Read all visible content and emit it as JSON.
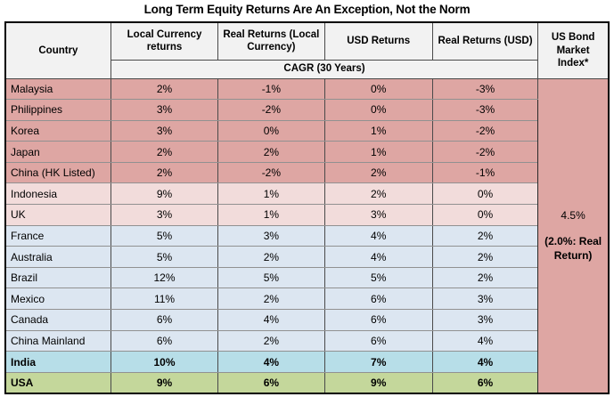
{
  "title": "Long Term Equity Returns Are An Exception, Not the Norm",
  "table": {
    "headers": [
      "Country",
      "Local Currency returns",
      "Real Returns (Local Currency)",
      "USD Returns",
      "Real Returns (USD)",
      "US Bond Market Index*"
    ],
    "subheader": "CAGR (30 Years)",
    "rows": [
      {
        "country": "Malaysia",
        "local": "2%",
        "real_local": "-1%",
        "usd": "0%",
        "real_usd": "-3%",
        "group": "pink-dark",
        "bold": false
      },
      {
        "country": "Philippines",
        "local": "3%",
        "real_local": "-2%",
        "usd": "0%",
        "real_usd": "-3%",
        "group": "pink-dark",
        "bold": false
      },
      {
        "country": "Korea",
        "local": "3%",
        "real_local": "0%",
        "usd": "1%",
        "real_usd": "-2%",
        "group": "pink-dark",
        "bold": false
      },
      {
        "country": "Japan",
        "local": "2%",
        "real_local": "2%",
        "usd": "1%",
        "real_usd": "-2%",
        "group": "pink-dark",
        "bold": false
      },
      {
        "country": "China (HK Listed)",
        "local": "2%",
        "real_local": "-2%",
        "usd": "2%",
        "real_usd": "-1%",
        "group": "pink-dark",
        "bold": false
      },
      {
        "country": "Indonesia",
        "local": "9%",
        "real_local": "1%",
        "usd": "2%",
        "real_usd": "0%",
        "group": "pink-light",
        "bold": false
      },
      {
        "country": "UK",
        "local": "3%",
        "real_local": "1%",
        "usd": "3%",
        "real_usd": "0%",
        "group": "pink-light",
        "bold": false
      },
      {
        "country": "France",
        "local": "5%",
        "real_local": "3%",
        "usd": "4%",
        "real_usd": "2%",
        "group": "blue",
        "bold": false
      },
      {
        "country": "Australia",
        "local": "5%",
        "real_local": "2%",
        "usd": "4%",
        "real_usd": "2%",
        "group": "blue",
        "bold": false
      },
      {
        "country": "Brazil",
        "local": "12%",
        "real_local": "5%",
        "usd": "5%",
        "real_usd": "2%",
        "group": "blue",
        "bold": false
      },
      {
        "country": "Mexico",
        "local": "11%",
        "real_local": "2%",
        "usd": "6%",
        "real_usd": "3%",
        "group": "blue",
        "bold": false
      },
      {
        "country": "Canada",
        "local": "6%",
        "real_local": "4%",
        "usd": "6%",
        "real_usd": "3%",
        "group": "blue",
        "bold": false
      },
      {
        "country": "China Mainland",
        "local": "6%",
        "real_local": "2%",
        "usd": "6%",
        "real_usd": "4%",
        "group": "blue",
        "bold": false
      },
      {
        "country": "India",
        "local": "10%",
        "real_local": "4%",
        "usd": "7%",
        "real_usd": "4%",
        "group": "cyan",
        "bold": true
      },
      {
        "country": "USA",
        "local": "9%",
        "real_local": "6%",
        "usd": "9%",
        "real_usd": "6%",
        "group": "green",
        "bold": true
      }
    ],
    "bond": {
      "value": "4.5%",
      "real_return": "(2.0%: Real Return)"
    }
  },
  "colors": {
    "row_dark_pink": "#DEA6A3",
    "row_light_pink": "#F2DCDB",
    "row_light_blue": "#DCE6F1",
    "row_india_cyan": "#B7DEE8",
    "row_usa_green": "#C4D79B",
    "header_gray": "#F2F2F2",
    "border_outer": "#000000"
  },
  "chart_data": {
    "type": "table",
    "title": "Long Term Equity Returns Are An Exception, Not the Norm",
    "columns": [
      "Country",
      "Local Currency returns",
      "Real Returns (Local Currency)",
      "USD Returns",
      "Real Returns (USD)",
      "US Bond Market Index*"
    ],
    "subheader": "CAGR (30 Years)",
    "rows": [
      [
        "Malaysia",
        "2%",
        "-1%",
        "0%",
        "-3%"
      ],
      [
        "Philippines",
        "3%",
        "-2%",
        "0%",
        "-3%"
      ],
      [
        "Korea",
        "3%",
        "0%",
        "1%",
        "-2%"
      ],
      [
        "Japan",
        "2%",
        "2%",
        "1%",
        "-2%"
      ],
      [
        "China (HK Listed)",
        "2%",
        "-2%",
        "2%",
        "-1%"
      ],
      [
        "Indonesia",
        "9%",
        "1%",
        "2%",
        "0%"
      ],
      [
        "UK",
        "3%",
        "1%",
        "3%",
        "0%"
      ],
      [
        "France",
        "5%",
        "3%",
        "4%",
        "2%"
      ],
      [
        "Australia",
        "5%",
        "2%",
        "4%",
        "2%"
      ],
      [
        "Brazil",
        "12%",
        "5%",
        "5%",
        "2%"
      ],
      [
        "Mexico",
        "11%",
        "2%",
        "6%",
        "3%"
      ],
      [
        "Canada",
        "6%",
        "4%",
        "6%",
        "3%"
      ],
      [
        "China Mainland",
        "6%",
        "2%",
        "6%",
        "4%"
      ],
      [
        "India",
        "10%",
        "4%",
        "7%",
        "4%"
      ],
      [
        "USA",
        "9%",
        "6%",
        "9%",
        "6%"
      ]
    ],
    "us_bond_market_index": "4.5%",
    "us_bond_real_return": "(2.0%: Real Return)"
  }
}
